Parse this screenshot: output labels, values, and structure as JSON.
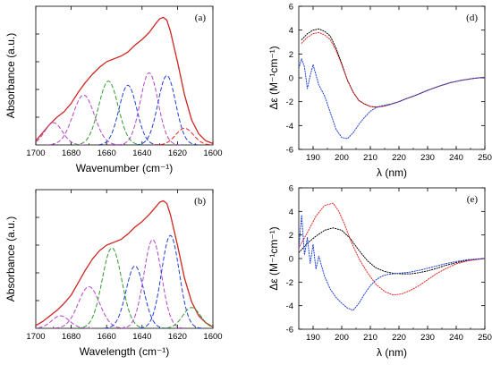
{
  "colors": {
    "black": "#000000",
    "red": "#e8251f",
    "blue": "#1f3fd6",
    "green": "#2e9a2e",
    "purple": "#b545c8"
  },
  "chart_data": [
    {
      "id": "a",
      "type": "line",
      "panel_label": "(a)",
      "xlabel": "Wavenumber (cm⁻¹)",
      "ylabel": "Absorbance (a.u.)",
      "xlim": [
        1700,
        1600
      ],
      "ylim": [
        0,
        1.0
      ],
      "xticks": [
        1700,
        1680,
        1660,
        1640,
        1620,
        1600
      ],
      "show_yticklabels": false,
      "series": [
        {
          "color": "black",
          "dash": "solid",
          "x": [
            1700,
            1696,
            1692,
            1688,
            1684,
            1680,
            1676,
            1672,
            1668,
            1664,
            1660,
            1656,
            1652,
            1648,
            1644,
            1640,
            1636,
            1632,
            1630,
            1628,
            1626,
            1624,
            1620,
            1616,
            1612,
            1608,
            1604,
            1600
          ],
          "y": [
            0.03,
            0.09,
            0.15,
            0.2,
            0.24,
            0.3,
            0.38,
            0.45,
            0.51,
            0.56,
            0.6,
            0.62,
            0.64,
            0.67,
            0.72,
            0.76,
            0.81,
            0.88,
            0.91,
            0.92,
            0.9,
            0.82,
            0.6,
            0.36,
            0.18,
            0.08,
            0.03,
            0.01
          ]
        },
        {
          "color": "red",
          "dash": "solid",
          "x": [
            1700,
            1696,
            1692,
            1688,
            1684,
            1680,
            1676,
            1672,
            1668,
            1664,
            1660,
            1656,
            1652,
            1648,
            1644,
            1640,
            1636,
            1632,
            1630,
            1628,
            1626,
            1624,
            1620,
            1616,
            1612,
            1608,
            1604,
            1600
          ],
          "y": [
            0.03,
            0.09,
            0.15,
            0.2,
            0.24,
            0.3,
            0.38,
            0.45,
            0.51,
            0.56,
            0.6,
            0.62,
            0.64,
            0.67,
            0.72,
            0.76,
            0.81,
            0.88,
            0.91,
            0.92,
            0.9,
            0.82,
            0.6,
            0.36,
            0.18,
            0.08,
            0.03,
            0.01
          ]
        },
        {
          "color": "purple",
          "dash": "dash",
          "gauss": [
            1690,
            0.16,
            5
          ]
        },
        {
          "color": "purple",
          "dash": "dash",
          "gauss": [
            1673,
            0.36,
            6
          ]
        },
        {
          "color": "green",
          "dash": "dash",
          "gauss": [
            1659,
            0.46,
            5.5
          ]
        },
        {
          "color": "blue",
          "dash": "dash",
          "gauss": [
            1648,
            0.43,
            5
          ]
        },
        {
          "color": "purple",
          "dash": "dash",
          "gauss": [
            1636,
            0.52,
            5
          ]
        },
        {
          "color": "blue",
          "dash": "dash",
          "gauss": [
            1626,
            0.5,
            5
          ]
        },
        {
          "color": "red",
          "dash": "dash",
          "gauss": [
            1616,
            0.12,
            5
          ]
        }
      ]
    },
    {
      "id": "b",
      "type": "line",
      "panel_label": "(b)",
      "xlabel": "Wavelength (cm⁻¹)",
      "ylabel": "Absorbance (a.u.)",
      "xlim": [
        1700,
        1600
      ],
      "ylim": [
        0,
        1.0
      ],
      "xticks": [
        1700,
        1680,
        1660,
        1640,
        1620,
        1600
      ],
      "show_yticklabels": false,
      "series": [
        {
          "color": "black",
          "dash": "solid",
          "x": [
            1700,
            1696,
            1692,
            1688,
            1684,
            1680,
            1676,
            1672,
            1668,
            1664,
            1660,
            1656,
            1652,
            1648,
            1644,
            1640,
            1636,
            1632,
            1630,
            1628,
            1626,
            1624,
            1620,
            1616,
            1612,
            1608,
            1604,
            1600
          ],
          "y": [
            0.02,
            0.05,
            0.09,
            0.13,
            0.18,
            0.24,
            0.33,
            0.42,
            0.5,
            0.56,
            0.6,
            0.62,
            0.64,
            0.68,
            0.73,
            0.77,
            0.82,
            0.88,
            0.91,
            0.92,
            0.9,
            0.82,
            0.6,
            0.36,
            0.19,
            0.09,
            0.04,
            0.01
          ]
        },
        {
          "color": "red",
          "dash": "solid",
          "x": [
            1700,
            1696,
            1692,
            1688,
            1684,
            1680,
            1676,
            1672,
            1668,
            1664,
            1660,
            1656,
            1652,
            1648,
            1644,
            1640,
            1636,
            1632,
            1630,
            1628,
            1626,
            1624,
            1620,
            1616,
            1612,
            1608,
            1604,
            1600
          ],
          "y": [
            0.02,
            0.05,
            0.09,
            0.13,
            0.18,
            0.24,
            0.33,
            0.42,
            0.5,
            0.56,
            0.6,
            0.62,
            0.64,
            0.68,
            0.73,
            0.77,
            0.82,
            0.88,
            0.91,
            0.92,
            0.9,
            0.82,
            0.6,
            0.36,
            0.19,
            0.09,
            0.04,
            0.01
          ]
        },
        {
          "color": "purple",
          "dash": "dash",
          "gauss": [
            1686,
            0.09,
            5
          ]
        },
        {
          "color": "purple",
          "dash": "dash",
          "gauss": [
            1670,
            0.3,
            6
          ]
        },
        {
          "color": "green",
          "dash": "dash",
          "gauss": [
            1657,
            0.58,
            5.5
          ]
        },
        {
          "color": "blue",
          "dash": "dash",
          "gauss": [
            1644,
            0.45,
            5
          ]
        },
        {
          "color": "purple",
          "dash": "dash",
          "gauss": [
            1634,
            0.64,
            5
          ]
        },
        {
          "color": "blue",
          "dash": "dash",
          "gauss": [
            1624,
            0.67,
            5
          ]
        },
        {
          "color": "green",
          "dash": "dash",
          "gauss": [
            1612,
            0.15,
            5
          ]
        }
      ]
    },
    {
      "id": "d",
      "type": "line",
      "panel_label": "(d)",
      "xlabel": "λ (nm)",
      "ylabel": "Δε (M⁻¹cm⁻¹)",
      "xlim": [
        185,
        250
      ],
      "ylim": [
        -6,
        6
      ],
      "xticks": [
        190,
        200,
        210,
        220,
        230,
        240,
        250
      ],
      "yticks": [
        -6,
        -4,
        -2,
        0,
        2,
        4,
        6
      ],
      "show_yticklabels": true,
      "series": [
        {
          "color": "black",
          "dash": "dot",
          "x": [
            186,
            188,
            190,
            192,
            194,
            196,
            198,
            200,
            202,
            204,
            206,
            208,
            210,
            212,
            214,
            216,
            218,
            220,
            222,
            226,
            230,
            234,
            238,
            242,
            246,
            250
          ],
          "y": [
            3.2,
            3.7,
            4.0,
            4.1,
            3.9,
            3.5,
            2.5,
            1.2,
            -0.2,
            -1.2,
            -1.9,
            -2.2,
            -2.4,
            -2.45,
            -2.4,
            -2.3,
            -2.15,
            -2.0,
            -1.8,
            -1.45,
            -1.05,
            -0.7,
            -0.4,
            -0.2,
            -0.05,
            0.05
          ]
        },
        {
          "color": "red",
          "dash": "dot",
          "x": [
            186,
            188,
            190,
            192,
            194,
            196,
            198,
            200,
            202,
            204,
            206,
            208,
            210,
            212,
            214,
            216,
            218,
            220,
            222,
            226,
            230,
            234,
            238,
            242,
            246,
            250
          ],
          "y": [
            2.9,
            3.4,
            3.7,
            3.8,
            3.6,
            3.2,
            2.3,
            1.1,
            -0.2,
            -1.2,
            -1.9,
            -2.2,
            -2.4,
            -2.45,
            -2.4,
            -2.3,
            -2.15,
            -2.0,
            -1.8,
            -1.45,
            -1.05,
            -0.7,
            -0.4,
            -0.2,
            -0.05,
            0.05
          ]
        },
        {
          "color": "blue",
          "dash": "dot",
          "x": [
            185,
            186,
            187,
            188,
            189,
            190,
            192,
            194,
            196,
            198,
            200,
            202,
            204,
            206,
            208,
            210,
            212,
            214,
            216,
            218,
            220,
            222,
            226,
            230,
            234,
            238,
            242,
            246,
            250
          ],
          "y": [
            0.8,
            1.6,
            0.9,
            -0.9,
            0.2,
            1.1,
            -0.6,
            -1.5,
            -2.9,
            -4.3,
            -5.0,
            -5.1,
            -4.6,
            -3.9,
            -3.3,
            -2.8,
            -2.5,
            -2.35,
            -2.25,
            -2.15,
            -2.0,
            -1.8,
            -1.45,
            -1.05,
            -0.7,
            -0.4,
            -0.2,
            -0.05,
            0.05
          ]
        }
      ]
    },
    {
      "id": "e",
      "type": "line",
      "panel_label": "(e)",
      "xlabel": "λ (nm)",
      "ylabel": "Δε (M⁻¹cm⁻¹)",
      "xlim": [
        185,
        250
      ],
      "ylim": [
        -6,
        6
      ],
      "xticks": [
        190,
        200,
        210,
        220,
        230,
        240,
        250
      ],
      "yticks": [
        -6,
        -4,
        -2,
        0,
        2,
        4,
        6
      ],
      "show_yticklabels": true,
      "series": [
        {
          "color": "black",
          "dash": "dot",
          "x": [
            185,
            188,
            191,
            194,
            197,
            200,
            203,
            206,
            209,
            212,
            215,
            218,
            221,
            224,
            227,
            230,
            233,
            236,
            240,
            244,
            248,
            250
          ],
          "y": [
            0.5,
            1.3,
            1.9,
            2.4,
            2.6,
            2.4,
            1.7,
            0.7,
            -0.2,
            -0.8,
            -1.1,
            -1.25,
            -1.3,
            -1.3,
            -1.2,
            -1.05,
            -0.85,
            -0.6,
            -0.35,
            -0.15,
            -0.05,
            0.0
          ]
        },
        {
          "color": "red",
          "dash": "dot",
          "x": [
            185,
            188,
            191,
            194,
            197,
            199,
            201,
            203,
            206,
            209,
            212,
            215,
            218,
            221,
            224,
            227,
            230,
            233,
            236,
            240,
            244,
            248,
            250
          ],
          "y": [
            0.9,
            2.2,
            3.6,
            4.5,
            4.7,
            4.0,
            2.9,
            1.6,
            0.0,
            -1.2,
            -2.2,
            -2.8,
            -3.1,
            -3.0,
            -2.7,
            -2.3,
            -1.8,
            -1.3,
            -0.9,
            -0.45,
            -0.2,
            -0.05,
            0.0
          ]
        },
        {
          "color": "blue",
          "dash": "dot",
          "x": [
            185,
            186,
            187,
            188,
            189,
            190,
            191,
            192,
            194,
            196,
            198,
            200,
            202,
            204,
            206,
            208,
            210,
            212,
            214,
            216,
            218,
            220,
            224,
            228,
            232,
            236,
            240,
            244,
            248,
            250
          ],
          "y": [
            0.8,
            3.7,
            0.3,
            1.8,
            -0.4,
            1.2,
            -0.9,
            0.2,
            -1.5,
            -2.6,
            -3.3,
            -3.8,
            -4.2,
            -4.4,
            -3.8,
            -3.0,
            -2.3,
            -1.8,
            -1.5,
            -1.35,
            -1.3,
            -1.25,
            -1.15,
            -0.95,
            -0.7,
            -0.45,
            -0.25,
            -0.1,
            -0.02,
            0.0
          ]
        }
      ]
    }
  ]
}
